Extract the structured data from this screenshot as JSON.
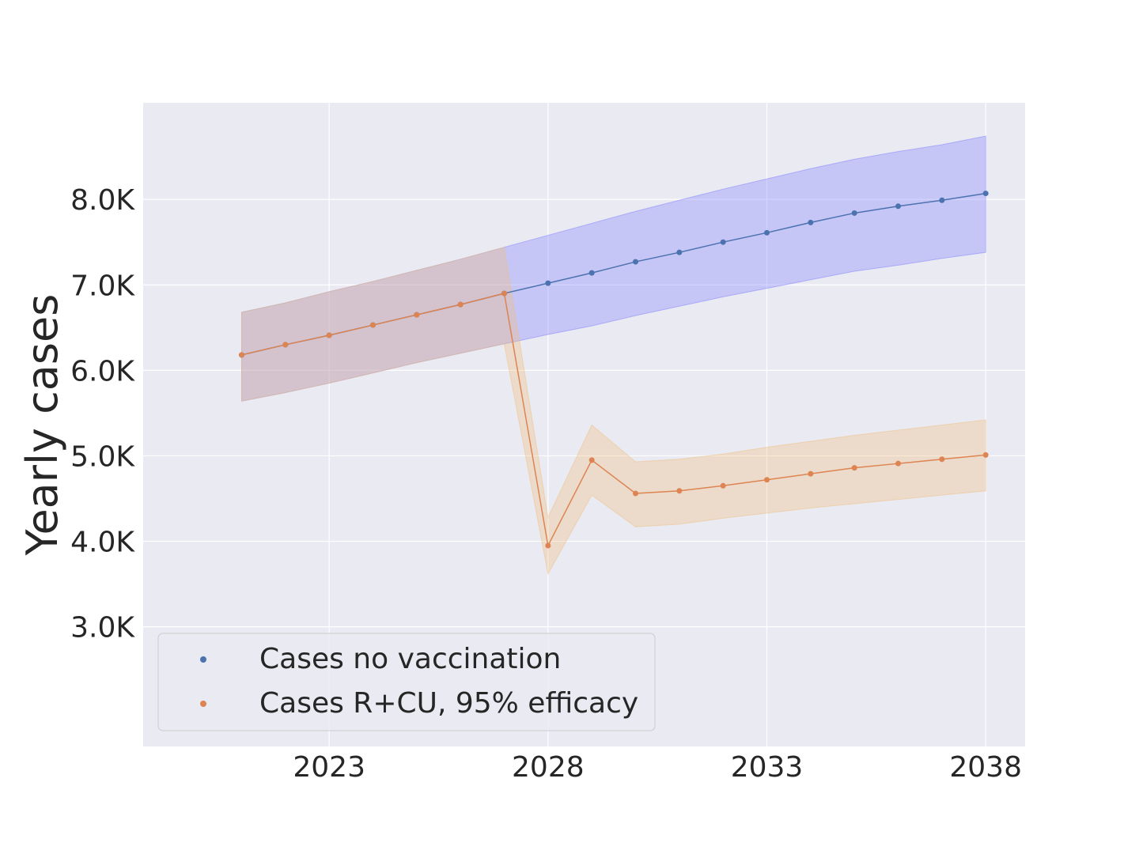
{
  "chart_data": {
    "type": "line",
    "xlabel": "",
    "ylabel": "Yearly cases",
    "x": [
      2021,
      2022,
      2023,
      2024,
      2025,
      2026,
      2027,
      2028,
      2029,
      2030,
      2031,
      2032,
      2033,
      2034,
      2035,
      2036,
      2037,
      2038
    ],
    "xlim": [
      2018.75,
      2038.9
    ],
    "ylim": [
      1600,
      9130
    ],
    "x_ticks": [
      2023,
      2028,
      2033,
      2038
    ],
    "x_tick_labels": [
      "2023",
      "2028",
      "2033",
      "2038"
    ],
    "y_ticks": [
      3000,
      4000,
      5000,
      6000,
      7000,
      8000
    ],
    "y_tick_labels": [
      "3.0K",
      "4.0K",
      "5.0K",
      "6.0K",
      "7.0K",
      "8.0K"
    ],
    "grid": true,
    "legend_position": "lower-left",
    "series": [
      {
        "name": "Cases no vaccination",
        "color": "#4c72b0",
        "band_color": "#8080ff",
        "values": [
          6180,
          6300,
          6410,
          6530,
          6650,
          6770,
          6900,
          7020,
          7140,
          7270,
          7380,
          7500,
          7610,
          7730,
          7840,
          7920,
          7990,
          8070
        ],
        "lower": [
          5640,
          5740,
          5850,
          5970,
          6090,
          6200,
          6310,
          6420,
          6520,
          6640,
          6750,
          6860,
          6960,
          7060,
          7160,
          7230,
          7310,
          7380
        ],
        "upper": [
          6680,
          6790,
          6920,
          7040,
          7170,
          7300,
          7440,
          7580,
          7720,
          7860,
          7990,
          8120,
          8240,
          8360,
          8470,
          8560,
          8640,
          8740
        ]
      },
      {
        "name": "Cases R+CU, 95% efficacy",
        "color": "#dd8452",
        "band_color": "#f0c080",
        "values": [
          6180,
          6300,
          6410,
          6530,
          6650,
          6770,
          6900,
          3950,
          4950,
          4560,
          4590,
          4650,
          4720,
          4790,
          4860,
          4910,
          4960,
          5010
        ],
        "lower": [
          5640,
          5740,
          5850,
          5970,
          6090,
          6200,
          6310,
          3620,
          4540,
          4170,
          4200,
          4270,
          4330,
          4390,
          4440,
          4490,
          4540,
          4590
        ],
        "upper": [
          6680,
          6790,
          6920,
          7040,
          7170,
          7300,
          7440,
          4280,
          5360,
          4930,
          4960,
          5020,
          5100,
          5170,
          5240,
          5300,
          5360,
          5420
        ]
      }
    ]
  }
}
